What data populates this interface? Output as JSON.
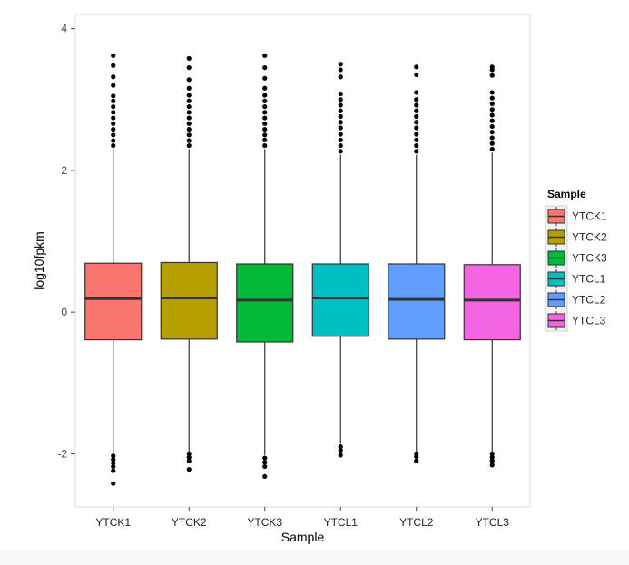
{
  "chart_data": {
    "type": "box",
    "xlabel": "Sample",
    "ylabel": "log10fpkm",
    "ylim": [
      -2.75,
      4.2
    ],
    "yticks": [
      -2,
      0,
      2,
      4
    ],
    "grid": false,
    "legend": {
      "title": "Sample",
      "position": "right"
    },
    "categories": [
      "YTCK1",
      "YTCK2",
      "YTCK3",
      "YTCL1",
      "YTCL2",
      "YTCL3"
    ],
    "series": [
      {
        "name": "YTCK1",
        "color": "#F8766D",
        "q1": -0.39,
        "median": 0.19,
        "q3": 0.69,
        "whisker_low": -1.99,
        "whisker_high": 2.3,
        "outliers_high": [
          2.35,
          2.42,
          2.5,
          2.58,
          2.66,
          2.74,
          2.82,
          2.9,
          2.98,
          3.05,
          3.2,
          3.32,
          3.48,
          3.62
        ],
        "outliers_low": [
          -2.03,
          -2.08,
          -2.13,
          -2.18,
          -2.24,
          -2.42
        ]
      },
      {
        "name": "YTCK2",
        "color": "#B79F00",
        "q1": -0.38,
        "median": 0.2,
        "q3": 0.7,
        "whisker_low": -1.98,
        "whisker_high": 2.3,
        "outliers_high": [
          2.35,
          2.42,
          2.5,
          2.58,
          2.66,
          2.74,
          2.82,
          2.9,
          2.98,
          3.06,
          3.16,
          3.28,
          3.45,
          3.58
        ],
        "outliers_low": [
          -2.0,
          -2.05,
          -2.1,
          -2.22
        ]
      },
      {
        "name": "YTCK3",
        "color": "#00BA38",
        "q1": -0.42,
        "median": 0.17,
        "q3": 0.68,
        "whisker_low": -2.02,
        "whisker_high": 2.3,
        "outliers_high": [
          2.35,
          2.43,
          2.5,
          2.58,
          2.66,
          2.74,
          2.82,
          2.9,
          2.98,
          3.06,
          3.16,
          3.3,
          3.45,
          3.62
        ],
        "outliers_low": [
          -2.06,
          -2.12,
          -2.18,
          -2.32
        ]
      },
      {
        "name": "YTCL1",
        "color": "#00BFC4",
        "q1": -0.34,
        "median": 0.2,
        "q3": 0.68,
        "whisker_low": -1.86,
        "whisker_high": 2.22,
        "outliers_high": [
          2.27,
          2.35,
          2.43,
          2.51,
          2.6,
          2.68,
          2.76,
          2.84,
          2.92,
          3.0,
          3.08,
          3.32,
          3.42,
          3.5
        ],
        "outliers_low": [
          -1.9,
          -1.95,
          -2.02
        ]
      },
      {
        "name": "YTCL2",
        "color": "#619CFF",
        "q1": -0.38,
        "median": 0.18,
        "q3": 0.68,
        "whisker_low": -1.98,
        "whisker_high": 2.22,
        "outliers_high": [
          2.27,
          2.35,
          2.43,
          2.51,
          2.6,
          2.68,
          2.76,
          2.84,
          2.92,
          3.0,
          3.1,
          3.35,
          3.46
        ],
        "outliers_low": [
          -2.0,
          -2.04,
          -2.1
        ]
      },
      {
        "name": "YTCL3",
        "color": "#F564E3",
        "q1": -0.39,
        "median": 0.17,
        "q3": 0.67,
        "whisker_low": -1.98,
        "whisker_high": 2.25,
        "outliers_high": [
          2.3,
          2.38,
          2.46,
          2.54,
          2.62,
          2.7,
          2.78,
          2.86,
          2.94,
          3.02,
          3.1,
          3.34,
          3.42,
          3.46
        ],
        "outliers_low": [
          -2.0,
          -2.05,
          -2.1,
          -2.16
        ]
      }
    ]
  }
}
